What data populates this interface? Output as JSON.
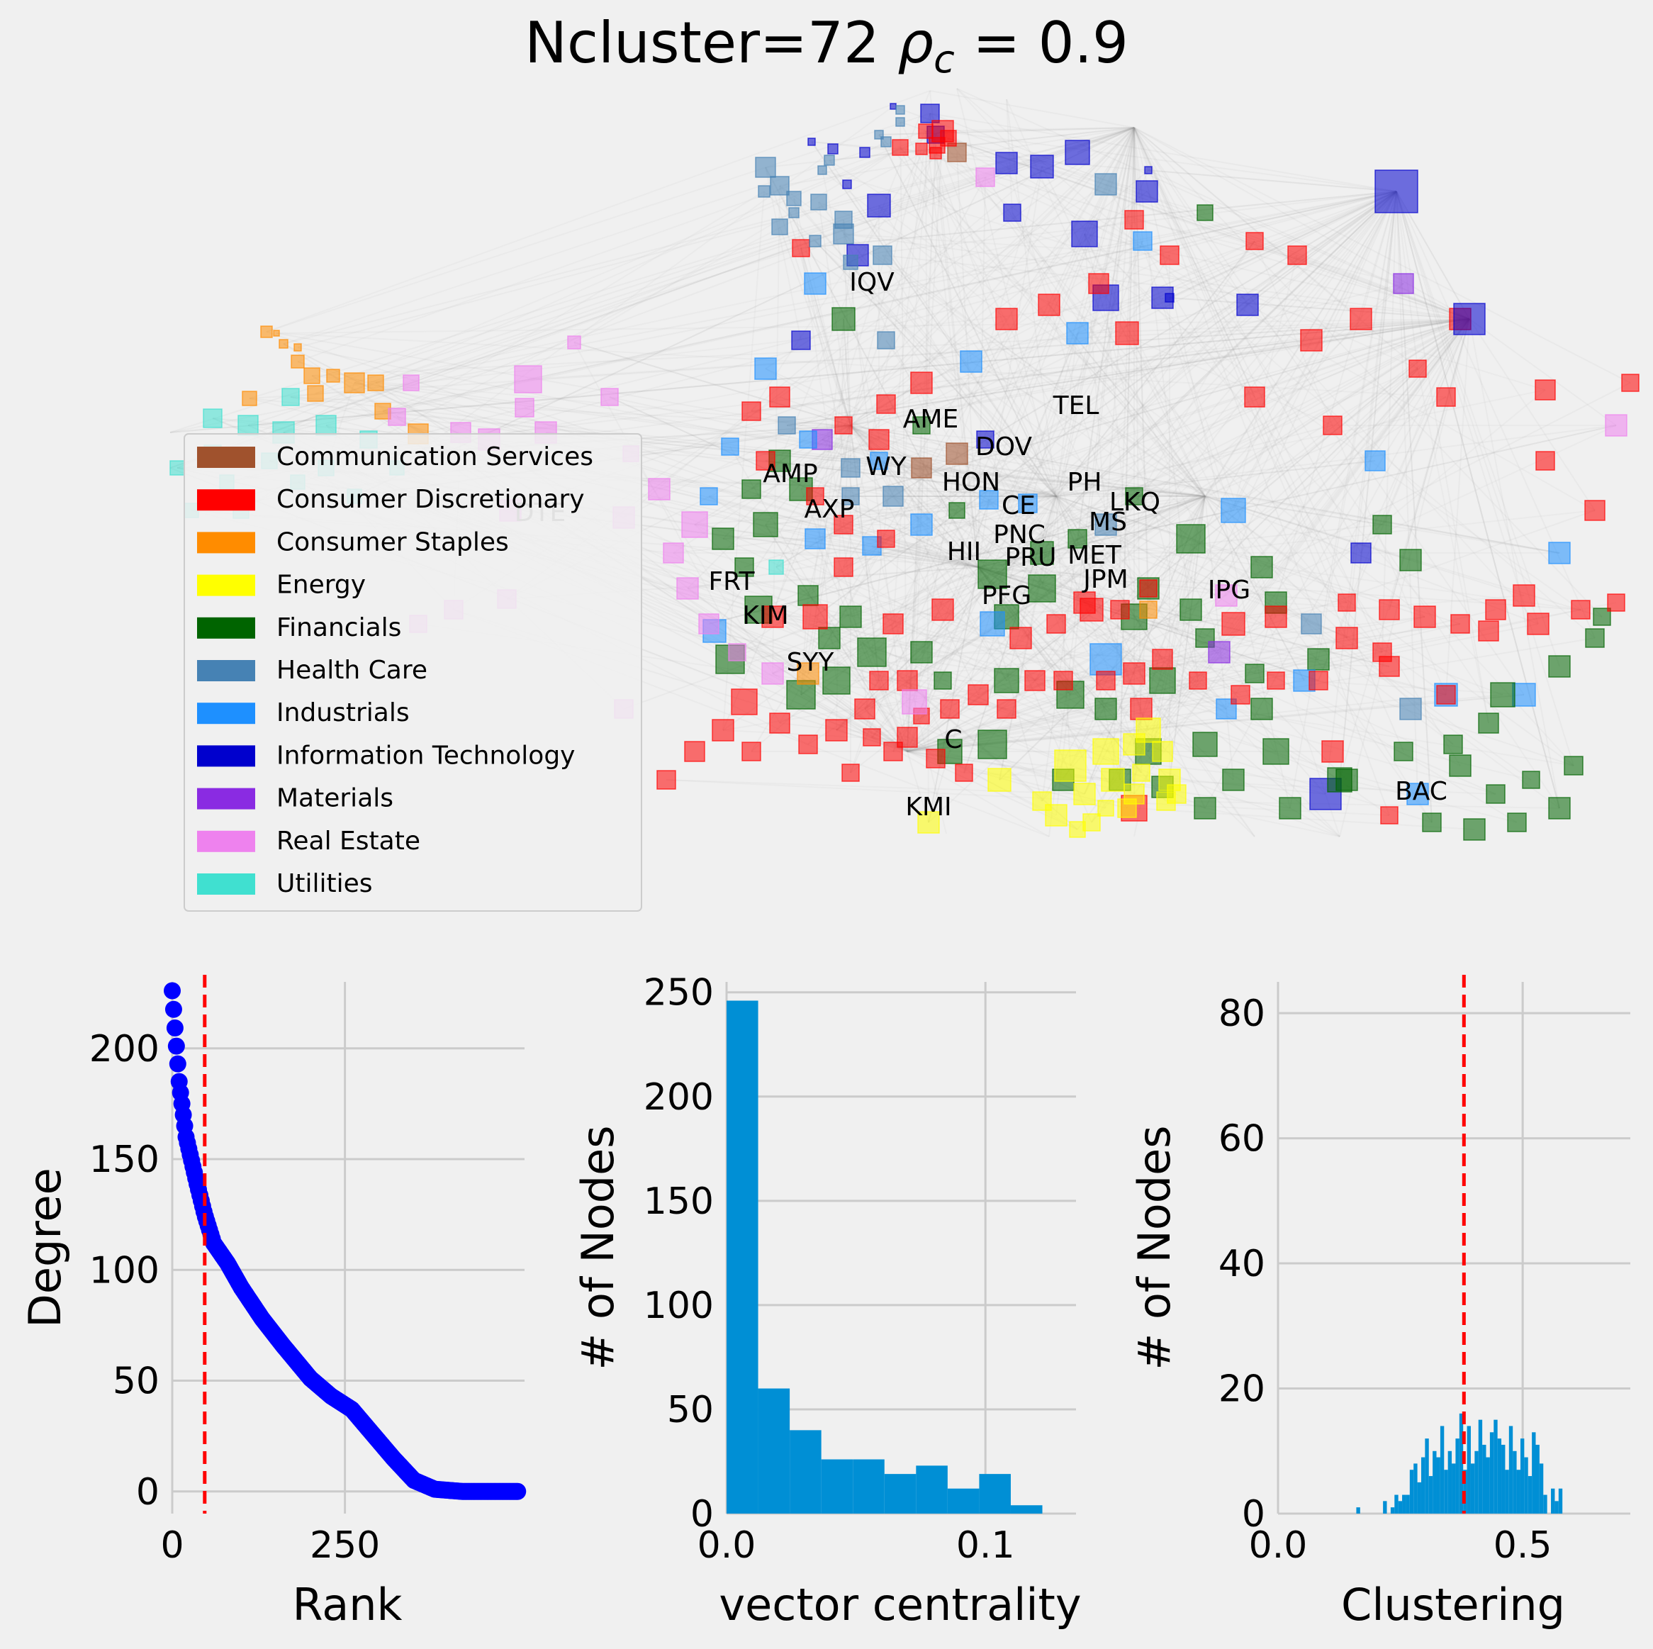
{
  "figure": {
    "title_text": "Ncluster=72  ",
    "title_rho": "ρ",
    "title_sub": "c",
    "title_value": " = 0.9",
    "background": "#f0f0f0"
  },
  "chart_data": [
    {
      "type": "network",
      "title": "Ncluster=72  ρc = 0.9",
      "legend_placement": "lower-left",
      "legend": [
        {
          "label": "Communication Services",
          "color": "#a0522d"
        },
        {
          "label": "Consumer Discretionary",
          "color": "#ff0000"
        },
        {
          "label": "Consumer Staples",
          "color": "#ff8c00"
        },
        {
          "label": "Energy",
          "color": "#ffff00"
        },
        {
          "label": "Financials",
          "color": "#006400"
        },
        {
          "label": "Health Care",
          "color": "#4682b4"
        },
        {
          "label": "Industrials",
          "color": "#1e90ff"
        },
        {
          "label": "Information Technology",
          "color": "#0000cd"
        },
        {
          "label": "Materials",
          "color": "#8a2be2"
        },
        {
          "label": "Real Estate",
          "color": "#ee82ee"
        },
        {
          "label": "Utilities",
          "color": "#40e0d0"
        }
      ],
      "node_labels": [
        "IQV",
        "AME",
        "TEL",
        "DOV",
        "AMP",
        "WY",
        "HON",
        "PH",
        "LKQ",
        "CE",
        "AXP",
        "MS",
        "PNC",
        "HII",
        "PRU",
        "MET",
        "DTE",
        "FRT",
        "JPM",
        "PFG",
        "IPG",
        "KIM",
        "SYY",
        "C",
        "KMI",
        "BAC"
      ]
    },
    {
      "type": "scatter",
      "xlabel": "Rank",
      "ylabel": "Degree",
      "xlim": [
        0,
        510
      ],
      "ylim": [
        -10,
        230
      ],
      "xticks": [
        "0",
        "250"
      ],
      "yticks": [
        "0",
        "50",
        "100",
        "150",
        "200"
      ],
      "vline_x": 47,
      "marker_color": "#0000ff",
      "vline_color": "#ff0000",
      "curve_points": [
        [
          0,
          226
        ],
        [
          5,
          205
        ],
        [
          10,
          185
        ],
        [
          20,
          160
        ],
        [
          35,
          140
        ],
        [
          47,
          125
        ],
        [
          60,
          112
        ],
        [
          80,
          103
        ],
        [
          100,
          92
        ],
        [
          130,
          78
        ],
        [
          160,
          66
        ],
        [
          200,
          51
        ],
        [
          230,
          43
        ],
        [
          260,
          37
        ],
        [
          290,
          26
        ],
        [
          320,
          15
        ],
        [
          350,
          5
        ],
        [
          380,
          1
        ],
        [
          420,
          0
        ],
        [
          505,
          0
        ]
      ]
    },
    {
      "type": "histogram",
      "xlabel": "vector centrality",
      "ylabel": "# of Nodes",
      "xlim": [
        0,
        0.135
      ],
      "ylim": [
        0,
        255
      ],
      "xticks": [
        "0.0",
        "0.1"
      ],
      "yticks": [
        "0",
        "50",
        "100",
        "150",
        "200",
        "250"
      ],
      "bin_width": 0.0122,
      "values": [
        246,
        60,
        40,
        26,
        26,
        19,
        23,
        12,
        19,
        4
      ],
      "bar_color": "#008fd5"
    },
    {
      "type": "histogram",
      "xlabel": "Clustering",
      "ylabel": "# of Nodes",
      "xlim": [
        0,
        0.72
      ],
      "ylim": [
        0,
        85
      ],
      "xticks": [
        "0.0",
        "0.5"
      ],
      "yticks": [
        "0",
        "20",
        "40",
        "60",
        "80"
      ],
      "vline_x": 0.38,
      "bin_start": 0.16,
      "bin_width": 0.0078,
      "values": [
        1,
        0,
        0,
        0,
        0,
        0,
        0,
        2,
        0,
        1,
        3,
        2,
        3,
        3,
        7,
        8,
        5,
        9,
        12,
        6,
        10,
        9,
        14,
        7,
        10,
        8,
        12,
        16,
        7,
        14,
        8,
        10,
        15,
        11,
        9,
        13,
        15,
        12,
        11,
        7,
        14,
        10,
        7,
        12,
        9,
        6,
        13,
        11,
        8,
        3,
        0,
        4,
        2,
        4,
        0
      ],
      "bar_color": "#008fd5",
      "vline_color": "#ff0000"
    }
  ]
}
